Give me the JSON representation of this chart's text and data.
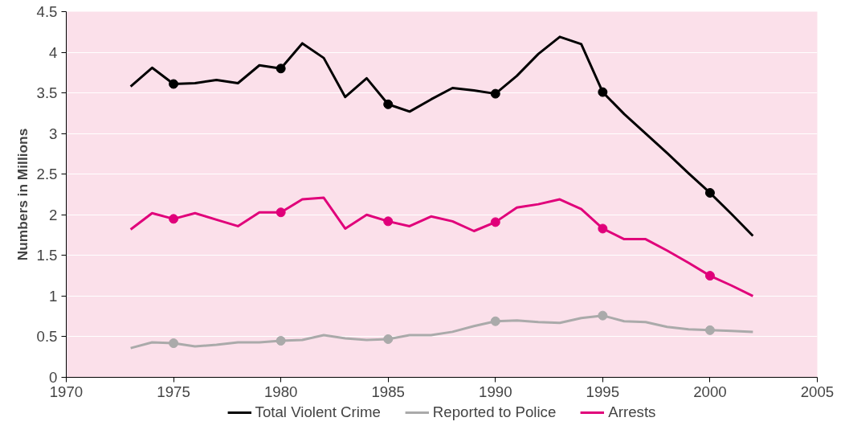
{
  "chart_data": {
    "type": "line",
    "ylabel": "Numbers in Millions",
    "x": [
      1973,
      1974,
      1975,
      1976,
      1977,
      1978,
      1979,
      1980,
      1981,
      1982,
      1983,
      1984,
      1985,
      1986,
      1987,
      1988,
      1989,
      1990,
      1991,
      1992,
      1993,
      1994,
      1995,
      1996,
      1997,
      1998,
      1999,
      2000,
      2001,
      2002
    ],
    "series": [
      {
        "name": "Total Violent Crime",
        "color": "#000000",
        "values": [
          3.58,
          3.81,
          3.61,
          3.62,
          3.66,
          3.62,
          3.84,
          3.8,
          4.11,
          3.93,
          3.45,
          3.68,
          3.36,
          3.27,
          3.42,
          3.56,
          3.53,
          3.49,
          3.71,
          3.98,
          4.19,
          4.1,
          3.51,
          3.24,
          3.0,
          2.76,
          2.51,
          2.27,
          2.01,
          1.74
        ]
      },
      {
        "name": "Reported to Police",
        "color": "#aaaaaa",
        "values": [
          0.36,
          0.43,
          0.42,
          0.38,
          0.4,
          0.43,
          0.43,
          0.45,
          0.46,
          0.52,
          0.48,
          0.46,
          0.47,
          0.52,
          0.52,
          0.56,
          0.63,
          0.69,
          0.7,
          0.68,
          0.67,
          0.73,
          0.76,
          0.69,
          0.68,
          0.62,
          0.59,
          0.58,
          0.57,
          0.56
        ]
      },
      {
        "name": "Arrests",
        "color": "#e0007a",
        "values": [
          1.82,
          2.02,
          1.95,
          2.02,
          1.94,
          1.86,
          2.03,
          2.03,
          2.19,
          2.21,
          1.83,
          2.0,
          1.92,
          1.86,
          1.98,
          1.92,
          1.8,
          1.91,
          2.09,
          2.13,
          2.19,
          2.07,
          1.83,
          1.7,
          1.7,
          1.56,
          1.41,
          1.25,
          1.13,
          1.0
        ]
      },
      {
        "type": "scatter",
        "marker": "circle",
        "color": "#000000",
        "x": [
          1975,
          1980,
          1985,
          1990,
          1995,
          2000
        ],
        "values": [
          3.61,
          3.8,
          3.36,
          3.49,
          3.51,
          2.27
        ]
      },
      {
        "type": "scatter",
        "marker": "circle",
        "color": "#aaaaaa",
        "x": [
          1975,
          1980,
          1985,
          1990,
          1995,
          2000
        ],
        "values": [
          0.42,
          0.45,
          0.47,
          0.69,
          0.76,
          0.58
        ]
      },
      {
        "type": "scatter",
        "marker": "circle",
        "color": "#e0007a",
        "x": [
          1975,
          1980,
          1985,
          1990,
          1995,
          2000
        ],
        "values": [
          1.95,
          2.03,
          1.92,
          1.91,
          1.83,
          1.25
        ]
      }
    ],
    "xlim": [
      1970,
      2005
    ],
    "xticks": [
      1970,
      1975,
      1980,
      1985,
      1990,
      1995,
      2000,
      2005
    ],
    "ylim": [
      0,
      4.5
    ],
    "yticks": [
      0,
      0.5,
      1,
      1.5,
      2,
      2.5,
      3,
      3.5,
      4,
      4.5
    ],
    "grid": "y",
    "legend": "bottom"
  }
}
